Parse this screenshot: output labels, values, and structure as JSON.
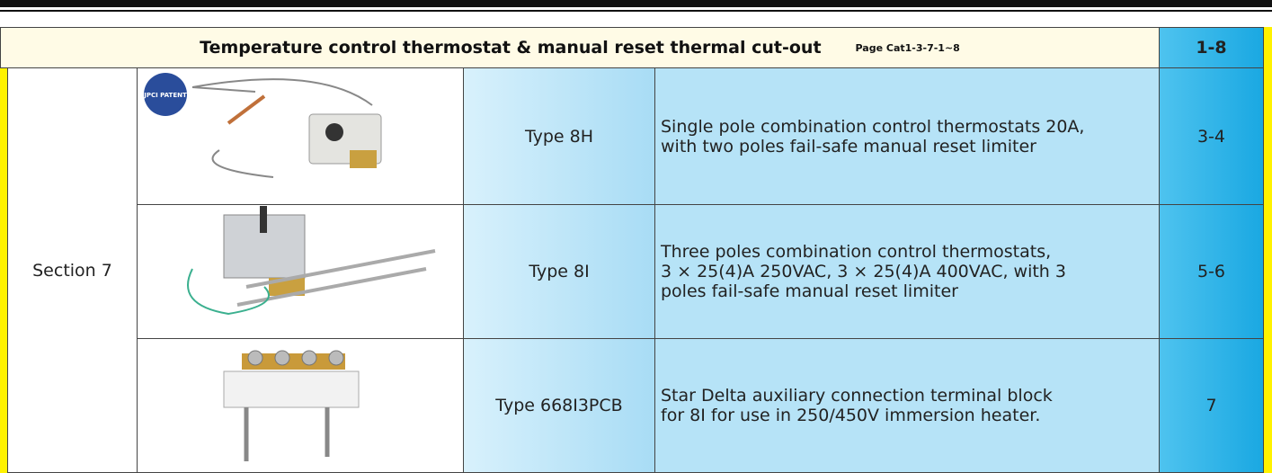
{
  "header": {
    "title": "Temperature control thermostat & manual reset thermal cut-out",
    "page_ref": "Page Cat1-3-7-1~8",
    "pages": "1-8"
  },
  "section": "Section 7",
  "badge": "JPCI PATENT",
  "rows": [
    {
      "type": "Type 8H",
      "description": [
        "Single pole combination control thermostats 20A,",
        "with two poles fail-safe manual reset limiter"
      ],
      "pages": "3-4"
    },
    {
      "type": "Type 8I",
      "description": [
        "Three poles combination control thermostats,",
        "3 × 25(4)A 250VAC, 3 × 25(4)A 400VAC, with 3",
        "poles fail-safe manual reset limiter"
      ],
      "pages": "5-6"
    },
    {
      "type": "Type 668I3PCB",
      "description": [
        "Star Delta auxiliary connection terminal block",
        "for 8I for use in 250/450V immersion heater."
      ],
      "pages": "7"
    }
  ]
}
